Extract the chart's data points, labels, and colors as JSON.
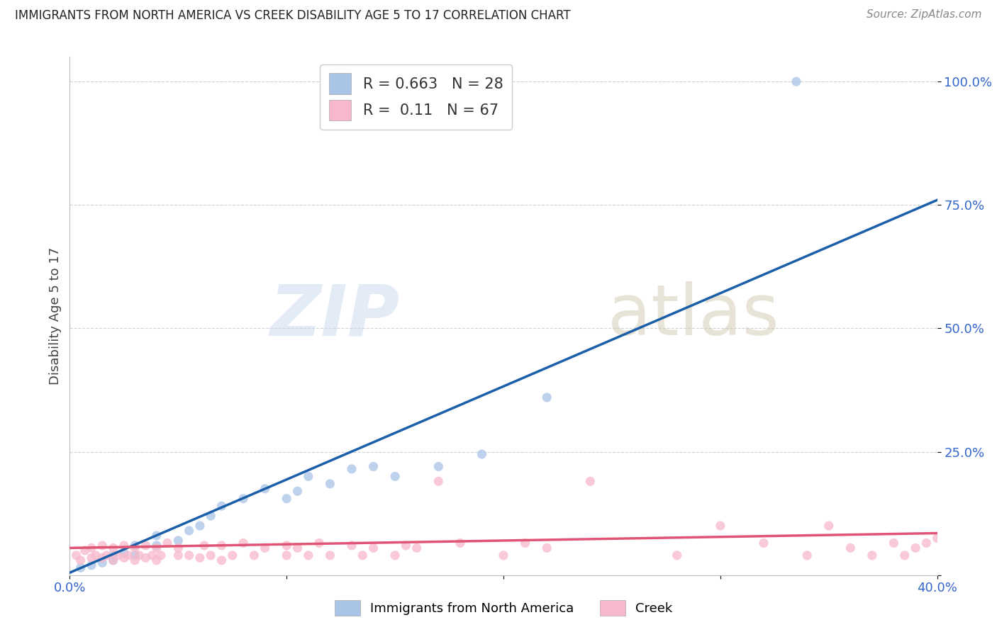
{
  "title": "IMMIGRANTS FROM NORTH AMERICA VS CREEK DISABILITY AGE 5 TO 17 CORRELATION CHART",
  "source": "Source: ZipAtlas.com",
  "ylabel": "Disability Age 5 to 17",
  "xlim": [
    0.0,
    0.4
  ],
  "ylim": [
    0.0,
    1.05
  ],
  "blue_R": 0.663,
  "blue_N": 28,
  "pink_R": 0.11,
  "pink_N": 67,
  "blue_color": "#aac4e8",
  "pink_color": "#f7b8cb",
  "blue_line_color": "#1a5fa8",
  "pink_line_color": "#e05575",
  "legend_label_blue": "Immigrants from North America",
  "legend_label_pink": "Creek",
  "watermark_zip": "ZIP",
  "watermark_atlas": "atlas",
  "ytick_values": [
    0.0,
    0.25,
    0.5,
    0.75,
    1.0
  ],
  "ytick_labels": [
    "",
    "25.0%",
    "50.0%",
    "75.0%",
    "100.0%"
  ],
  "xtick_values": [
    0.0,
    0.1,
    0.2,
    0.3,
    0.4
  ],
  "xtick_labels": [
    "0.0%",
    "",
    "",
    "",
    "40.0%"
  ],
  "blue_line_x0": 0.0,
  "blue_line_y0": 0.005,
  "blue_line_x1": 0.4,
  "blue_line_y1": 0.76,
  "pink_line_x0": 0.0,
  "pink_line_y0": 0.055,
  "pink_line_x1": 0.4,
  "pink_line_y1": 0.085,
  "blue_scatter_x": [
    0.005,
    0.01,
    0.015,
    0.02,
    0.02,
    0.025,
    0.03,
    0.03,
    0.04,
    0.04,
    0.05,
    0.055,
    0.06,
    0.065,
    0.07,
    0.08,
    0.09,
    0.1,
    0.105,
    0.11,
    0.12,
    0.13,
    0.14,
    0.15,
    0.17,
    0.19,
    0.22,
    0.335
  ],
  "blue_scatter_y": [
    0.015,
    0.02,
    0.025,
    0.03,
    0.04,
    0.045,
    0.04,
    0.06,
    0.06,
    0.08,
    0.07,
    0.09,
    0.1,
    0.12,
    0.14,
    0.155,
    0.175,
    0.155,
    0.17,
    0.2,
    0.185,
    0.215,
    0.22,
    0.2,
    0.22,
    0.245,
    0.36,
    1.0
  ],
  "pink_scatter_x": [
    0.003,
    0.005,
    0.007,
    0.01,
    0.01,
    0.012,
    0.015,
    0.015,
    0.017,
    0.02,
    0.02,
    0.022,
    0.025,
    0.025,
    0.027,
    0.03,
    0.03,
    0.032,
    0.035,
    0.035,
    0.038,
    0.04,
    0.04,
    0.042,
    0.045,
    0.05,
    0.05,
    0.055,
    0.06,
    0.062,
    0.065,
    0.07,
    0.07,
    0.075,
    0.08,
    0.085,
    0.09,
    0.1,
    0.1,
    0.105,
    0.11,
    0.115,
    0.12,
    0.13,
    0.135,
    0.14,
    0.15,
    0.155,
    0.16,
    0.17,
    0.18,
    0.2,
    0.21,
    0.22,
    0.24,
    0.28,
    0.3,
    0.32,
    0.34,
    0.35,
    0.36,
    0.37,
    0.38,
    0.385,
    0.39,
    0.395,
    0.4
  ],
  "pink_scatter_y": [
    0.04,
    0.03,
    0.05,
    0.035,
    0.055,
    0.04,
    0.035,
    0.06,
    0.04,
    0.03,
    0.055,
    0.04,
    0.035,
    0.06,
    0.04,
    0.03,
    0.055,
    0.04,
    0.035,
    0.06,
    0.04,
    0.03,
    0.055,
    0.04,
    0.065,
    0.04,
    0.055,
    0.04,
    0.035,
    0.06,
    0.04,
    0.03,
    0.06,
    0.04,
    0.065,
    0.04,
    0.055,
    0.04,
    0.06,
    0.055,
    0.04,
    0.065,
    0.04,
    0.06,
    0.04,
    0.055,
    0.04,
    0.06,
    0.055,
    0.19,
    0.065,
    0.04,
    0.065,
    0.055,
    0.19,
    0.04,
    0.1,
    0.065,
    0.04,
    0.1,
    0.055,
    0.04,
    0.065,
    0.04,
    0.055,
    0.065,
    0.075
  ]
}
